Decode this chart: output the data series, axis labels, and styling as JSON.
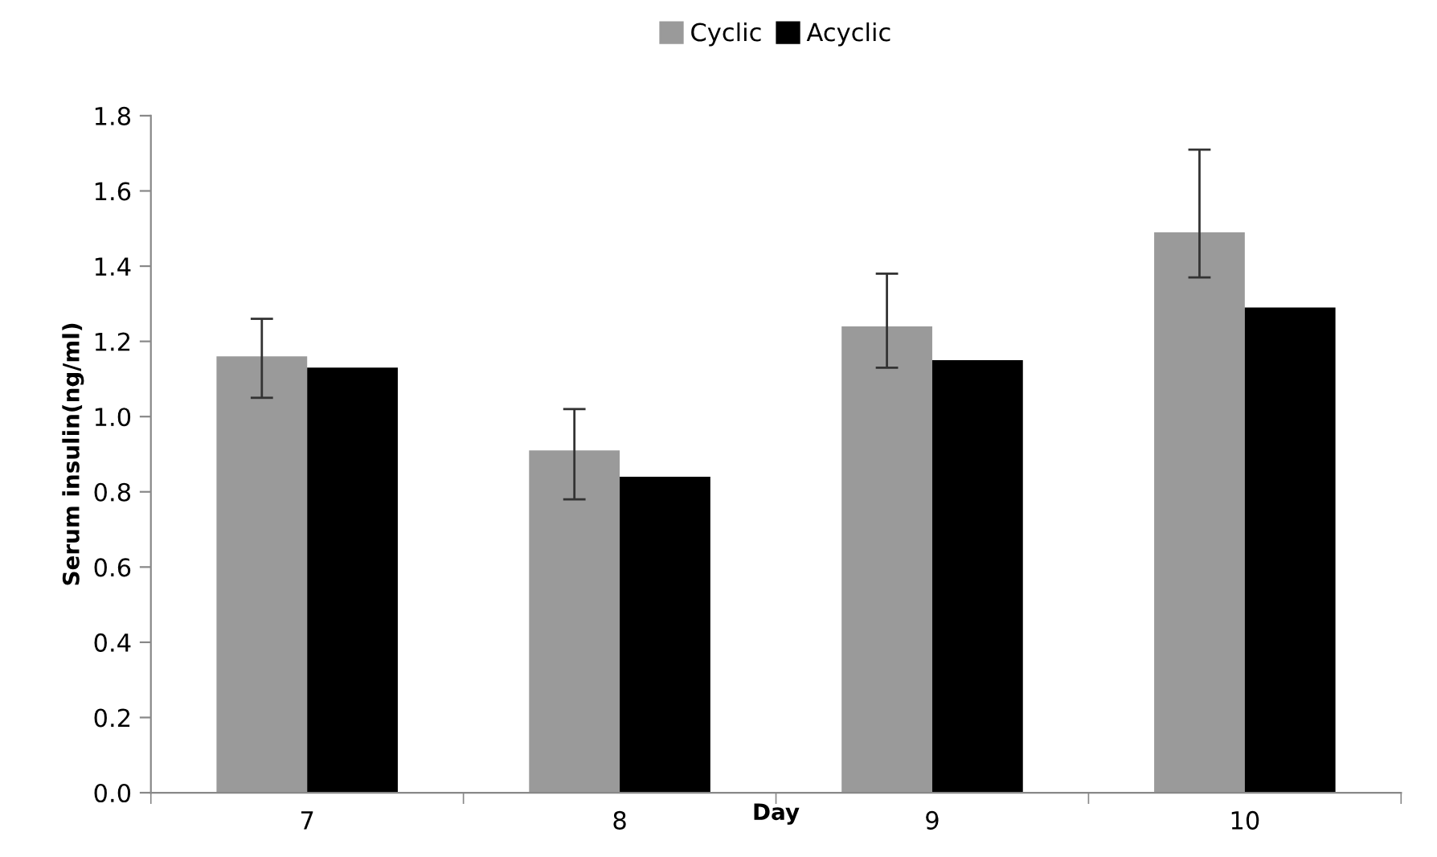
{
  "chart_data": {
    "type": "bar",
    "xlabel": "Day",
    "ylabel": "Serum insulin(ng/ml)",
    "categories": [
      "7",
      "8",
      "9",
      "10"
    ],
    "series": [
      {
        "name": "Cyclic",
        "color": "#9a9a9a",
        "values": [
          1.16,
          0.91,
          1.24,
          1.49
        ],
        "errors": [
          [
            1.05,
            1.26
          ],
          [
            0.78,
            1.02
          ],
          [
            1.13,
            1.38
          ],
          [
            1.37,
            1.71
          ]
        ]
      },
      {
        "name": "Acyclic",
        "color": "#000000",
        "values": [
          1.13,
          0.84,
          1.15,
          1.29
        ]
      }
    ],
    "ylim": [
      0,
      1.8
    ],
    "yticks": [
      {
        "value": 0,
        "label": "0.0"
      },
      {
        "value": 0.2,
        "label": "0.2"
      },
      {
        "value": 0.4,
        "label": "0.4"
      },
      {
        "value": 0.6,
        "label": "0.6"
      },
      {
        "value": 0.8,
        "label": "0.8"
      },
      {
        "value": 1.0,
        "label": "1.0"
      },
      {
        "value": 1.2,
        "label": "1.2"
      },
      {
        "value": 1.4,
        "label": "1.4"
      },
      {
        "value": 1.6,
        "label": "1.6"
      },
      {
        "value": 1.8,
        "label": "1.8"
      }
    ],
    "grid": false,
    "legend": "top"
  }
}
